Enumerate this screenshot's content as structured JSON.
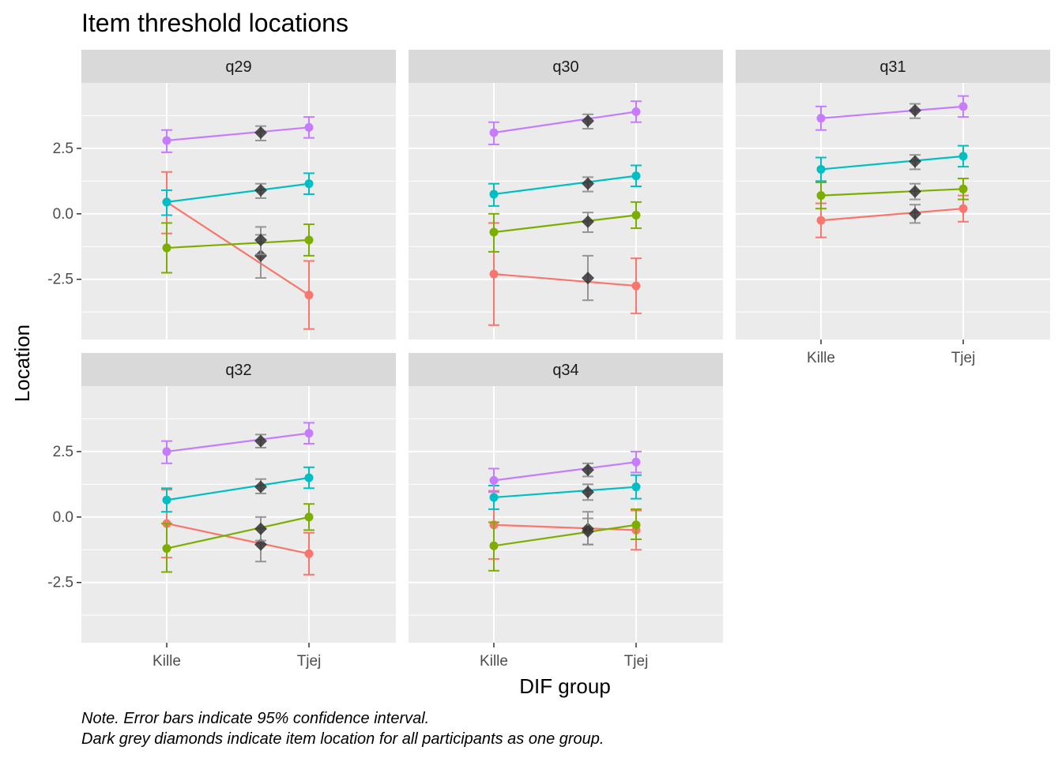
{
  "chart_data": {
    "type": "line",
    "title": "Item threshold locations",
    "xlabel": "DIF group",
    "ylabel": "Location",
    "x_categories": [
      "Kille",
      "Tjej"
    ],
    "y_ticks": [
      "-2.5",
      "0.0",
      "2.5"
    ],
    "ylim": [
      -4.8,
      5.0
    ],
    "legend": "none",
    "caption": [
      "Note. Error bars indicate 95% confidence interval.",
      "Dark grey diamonds indicate item location for all participants as one group."
    ],
    "threshold_colors": [
      "#F8766D",
      "#7CAE00",
      "#00BFC4",
      "#C77CFF"
    ],
    "diamond_color": "#333333",
    "panels": [
      {
        "label": "q29",
        "thresholds": [
          {
            "kille": {
              "y": 0.45,
              "lo": -0.75,
              "hi": 1.6
            },
            "tjej": {
              "y": -3.1,
              "lo": -4.4,
              "hi": -1.8
            },
            "all": {
              "y": -1.6,
              "lo": -2.45,
              "hi": -0.8
            }
          },
          {
            "kille": {
              "y": -1.3,
              "lo": -2.25,
              "hi": -0.35
            },
            "tjej": {
              "y": -1.0,
              "lo": -1.6,
              "hi": -0.4
            },
            "all": {
              "y": -1.0,
              "lo": -1.55,
              "hi": -0.5
            }
          },
          {
            "kille": {
              "y": 0.45,
              "lo": -0.05,
              "hi": 0.9
            },
            "tjej": {
              "y": 1.15,
              "lo": 0.75,
              "hi": 1.55
            },
            "all": {
              "y": 0.9,
              "lo": 0.6,
              "hi": 1.15
            }
          },
          {
            "kille": {
              "y": 2.8,
              "lo": 2.35,
              "hi": 3.2
            },
            "tjej": {
              "y": 3.3,
              "lo": 2.9,
              "hi": 3.7
            },
            "all": {
              "y": 3.1,
              "lo": 2.8,
              "hi": 3.35
            }
          }
        ]
      },
      {
        "label": "q30",
        "thresholds": [
          {
            "kille": {
              "y": -2.3,
              "lo": -4.25,
              "hi": -0.35
            },
            "tjej": {
              "y": -2.75,
              "lo": -3.8,
              "hi": -1.7
            },
            "all": {
              "y": -2.45,
              "lo": -3.3,
              "hi": -1.6
            }
          },
          {
            "kille": {
              "y": -0.7,
              "lo": -1.45,
              "hi": 0.0
            },
            "tjej": {
              "y": -0.05,
              "lo": -0.55,
              "hi": 0.45
            },
            "all": {
              "y": -0.3,
              "lo": -0.7,
              "hi": 0.05
            }
          },
          {
            "kille": {
              "y": 0.75,
              "lo": 0.3,
              "hi": 1.15
            },
            "tjej": {
              "y": 1.45,
              "lo": 1.05,
              "hi": 1.85
            },
            "all": {
              "y": 1.15,
              "lo": 0.85,
              "hi": 1.4
            }
          },
          {
            "kille": {
              "y": 3.1,
              "lo": 2.65,
              "hi": 3.5
            },
            "tjej": {
              "y": 3.9,
              "lo": 3.5,
              "hi": 4.3
            },
            "all": {
              "y": 3.55,
              "lo": 3.25,
              "hi": 3.8
            }
          }
        ]
      },
      {
        "label": "q31",
        "thresholds": [
          {
            "kille": {
              "y": -0.25,
              "lo": -0.9,
              "hi": 0.4
            },
            "tjej": {
              "y": 0.2,
              "lo": -0.3,
              "hi": 0.7
            },
            "all": {
              "y": 0.0,
              "lo": -0.35,
              "hi": 0.35
            }
          },
          {
            "kille": {
              "y": 0.7,
              "lo": 0.2,
              "hi": 1.2
            },
            "tjej": {
              "y": 0.95,
              "lo": 0.55,
              "hi": 1.35
            },
            "all": {
              "y": 0.85,
              "lo": 0.55,
              "hi": 1.15
            }
          },
          {
            "kille": {
              "y": 1.7,
              "lo": 1.25,
              "hi": 2.15
            },
            "tjej": {
              "y": 2.2,
              "lo": 1.8,
              "hi": 2.6
            },
            "all": {
              "y": 2.0,
              "lo": 1.7,
              "hi": 2.25
            }
          },
          {
            "kille": {
              "y": 3.65,
              "lo": 3.2,
              "hi": 4.1
            },
            "tjej": {
              "y": 4.1,
              "lo": 3.7,
              "hi": 4.5
            },
            "all": {
              "y": 3.95,
              "lo": 3.65,
              "hi": 4.2
            }
          }
        ]
      },
      {
        "label": "q32",
        "thresholds": [
          {
            "kille": {
              "y": -0.25,
              "lo": -1.55,
              "hi": 1.05
            },
            "tjej": {
              "y": -1.4,
              "lo": -2.2,
              "hi": -0.6
            },
            "all": {
              "y": -1.05,
              "lo": -1.7,
              "hi": -0.45
            }
          },
          {
            "kille": {
              "y": -1.2,
              "lo": -2.1,
              "hi": -0.25
            },
            "tjej": {
              "y": 0.0,
              "lo": -0.5,
              "hi": 0.5
            },
            "all": {
              "y": -0.45,
              "lo": -0.9,
              "hi": 0.0
            }
          },
          {
            "kille": {
              "y": 0.65,
              "lo": 0.2,
              "hi": 1.1
            },
            "tjej": {
              "y": 1.5,
              "lo": 1.1,
              "hi": 1.9
            },
            "all": {
              "y": 1.15,
              "lo": 0.9,
              "hi": 1.45
            }
          },
          {
            "kille": {
              "y": 2.5,
              "lo": 2.05,
              "hi": 2.9
            },
            "tjej": {
              "y": 3.2,
              "lo": 2.8,
              "hi": 3.6
            },
            "all": {
              "y": 2.9,
              "lo": 2.65,
              "hi": 3.15
            }
          }
        ]
      },
      {
        "label": "q34",
        "thresholds": [
          {
            "kille": {
              "y": -0.3,
              "lo": -1.6,
              "hi": 1.0
            },
            "tjej": {
              "y": -0.5,
              "lo": -1.25,
              "hi": 0.25
            },
            "all": {
              "y": -0.45,
              "lo": -1.05,
              "hi": 0.2
            }
          },
          {
            "kille": {
              "y": -1.1,
              "lo": -2.05,
              "hi": -0.2
            },
            "tjej": {
              "y": -0.3,
              "lo": -0.85,
              "hi": 0.3
            },
            "all": {
              "y": -0.55,
              "lo": -1.05,
              "hi": -0.05
            }
          },
          {
            "kille": {
              "y": 0.75,
              "lo": 0.3,
              "hi": 1.2
            },
            "tjej": {
              "y": 1.15,
              "lo": 0.7,
              "hi": 1.6
            },
            "all": {
              "y": 0.95,
              "lo": 0.65,
              "hi": 1.25
            }
          },
          {
            "kille": {
              "y": 1.4,
              "lo": 0.95,
              "hi": 1.85
            },
            "tjej": {
              "y": 2.1,
              "lo": 1.7,
              "hi": 2.5
            },
            "all": {
              "y": 1.8,
              "lo": 1.55,
              "hi": 2.05
            }
          }
        ]
      }
    ]
  }
}
